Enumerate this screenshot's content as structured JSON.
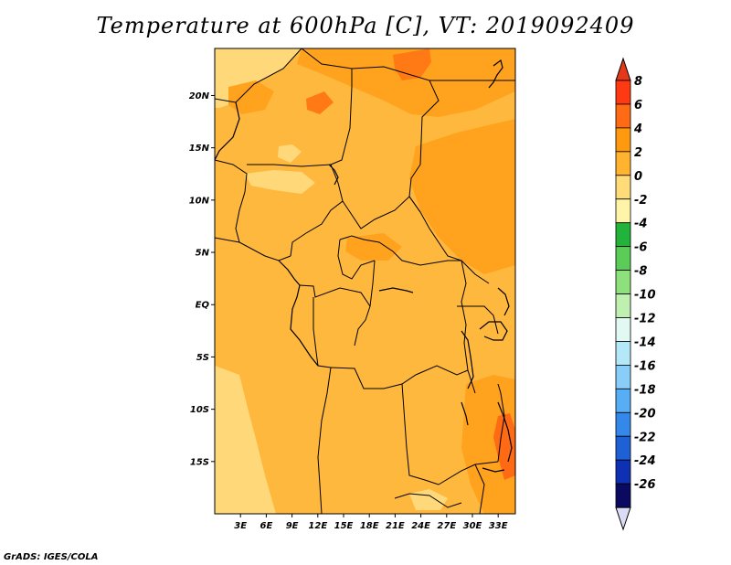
{
  "title": "Temperature at 600hPa [C], VT: 2019092409",
  "credit": "GrADS: IGES/COLA",
  "map": {
    "lon_ticks": [
      "3E",
      "6E",
      "9E",
      "12E",
      "15E",
      "18E",
      "21E",
      "24E",
      "27E",
      "30E",
      "33E"
    ],
    "lat_ticks": [
      "20N",
      "15N",
      "10N",
      "5N",
      "EQ",
      "5S",
      "10S",
      "15S"
    ],
    "lon_range": [
      0,
      35
    ],
    "lat_range": [
      -20,
      24.5
    ],
    "field_dominant_range_C": [
      0,
      2
    ],
    "field_max_region": "Malawi area, 4 to 6 C",
    "field_min_region": "southwest coast, -2 to 0 C"
  },
  "colorbar": {
    "labels": [
      "8",
      "6",
      "4",
      "2",
      "0",
      "-2",
      "-4",
      "-6",
      "-8",
      "-10",
      "-12",
      "-14",
      "-16",
      "-18",
      "-20",
      "-22",
      "-24",
      "-26"
    ],
    "colors": [
      "#ff3a12",
      "#ff6a14",
      "#ff9a0e",
      "#ffb32e",
      "#ffdc78",
      "#fff4a8",
      "#22b43a",
      "#5ccc58",
      "#8ee07c",
      "#c0f0b0",
      "#e2f8f2",
      "#b4e8f8",
      "#88cef8",
      "#58aef4",
      "#3488ea",
      "#1e60d6",
      "#1030b4",
      "#0a0a60"
    ],
    "top_triangle_color": "#e4381a",
    "bottom_triangle_color": "#dcdcf4"
  }
}
